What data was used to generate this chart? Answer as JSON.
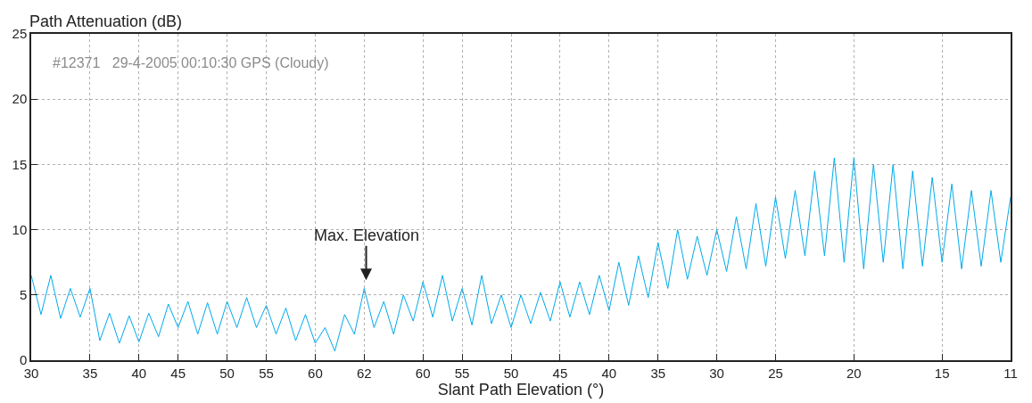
{
  "chart_data": {
    "type": "line",
    "ylabel": "Path Attenuation (dB)",
    "xlabel": "Slant Path Elevation (°)",
    "annotations": [
      "#12371   29-4-2005 00:10:30 GPS (Cloudy)",
      "Max. Elevation"
    ],
    "categories": [
      "30",
      null,
      null,
      null,
      null,
      null,
      "35",
      null,
      null,
      null,
      null,
      "40",
      null,
      null,
      null,
      "45",
      null,
      null,
      null,
      null,
      "50",
      null,
      null,
      null,
      "55",
      null,
      null,
      null,
      null,
      "60",
      null,
      null,
      null,
      null,
      "62",
      null,
      null,
      null,
      null,
      null,
      "60",
      null,
      null,
      null,
      "55",
      null,
      null,
      null,
      null,
      "50",
      null,
      null,
      null,
      null,
      "45",
      null,
      null,
      null,
      null,
      "40",
      null,
      null,
      null,
      null,
      "35",
      null,
      null,
      null,
      null,
      null,
      "30",
      null,
      null,
      null,
      null,
      null,
      "25",
      null,
      null,
      null,
      null,
      null,
      null,
      null,
      "20",
      null,
      null,
      null,
      null,
      null,
      null,
      null,
      null,
      "15",
      null,
      null,
      null,
      null,
      null,
      null,
      "11"
    ],
    "series": [
      {
        "color": "#00aaeb",
        "values": [
          6.5,
          3.5,
          6.5,
          3.2,
          5.5,
          3.3,
          5.5,
          1.5,
          3.6,
          1.3,
          3.4,
          1.4,
          3.6,
          1.8,
          4.3,
          2.5,
          4.5,
          2,
          4.4,
          2,
          4.5,
          2.5,
          4.8,
          2.5,
          4.2,
          2,
          4,
          1.5,
          3.5,
          1.3,
          2.5,
          0.7,
          3.5,
          2,
          5.5,
          2.5,
          4.5,
          2,
          5,
          3,
          6,
          3.3,
          6.5,
          3,
          5.5,
          2.7,
          6.5,
          2.8,
          5,
          2.5,
          5,
          2.8,
          5.2,
          3,
          6,
          3.3,
          6,
          3.5,
          6.5,
          3.8,
          7.5,
          4.2,
          8,
          4.8,
          9,
          5.5,
          10,
          6.2,
          9.5,
          6.5,
          10,
          6.8,
          11,
          7,
          12,
          7.2,
          12.5,
          7.8,
          13,
          8,
          14.5,
          8,
          15.5,
          7.5,
          15.5,
          7,
          15,
          7.5,
          15,
          7,
          14.5,
          7.2,
          14,
          7.5,
          13.5,
          7,
          13,
          7.2,
          13,
          7.5,
          12.5
        ]
      }
    ],
    "ylim": [
      0,
      25
    ],
    "yticks": [
      0,
      5,
      10,
      15,
      20,
      25
    ],
    "grid": true,
    "line_style": "solid",
    "marker": "none"
  }
}
